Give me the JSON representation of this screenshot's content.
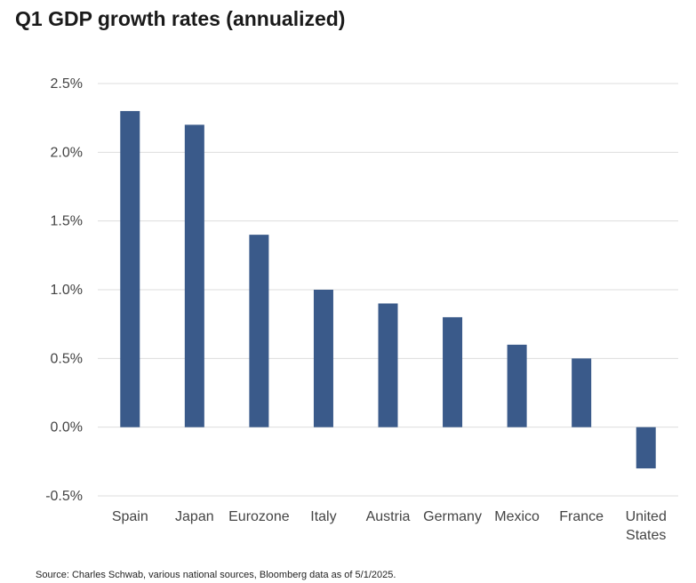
{
  "chart_data": {
    "type": "bar",
    "title": "Q1 GDP growth rates (annualized)",
    "xlabel": "",
    "ylabel": "",
    "categories": [
      "Spain",
      "Japan",
      "Eurozone",
      "Italy",
      "Austria",
      "Germany",
      "Mexico",
      "France",
      "United States"
    ],
    "values": [
      2.3,
      2.2,
      1.4,
      1.0,
      0.9,
      0.8,
      0.6,
      0.5,
      -0.3
    ],
    "value_unit": "%",
    "ylim": [
      -0.5,
      2.5
    ],
    "yticks": [
      2.5,
      2.0,
      1.5,
      1.0,
      0.5,
      0.0,
      -0.5
    ],
    "ytick_labels": [
      "2.5%",
      "2.0%",
      "1.5%",
      "1.0%",
      "0.5%",
      "0.0%",
      "-0.5%"
    ],
    "grid": true,
    "legend": "none",
    "bar_color": "#3a5a8a",
    "grid_color": "#dddddd"
  },
  "footer": {
    "source": "Source: Charles Schwab, various national sources, Bloomberg data as of 5/1/2025."
  }
}
